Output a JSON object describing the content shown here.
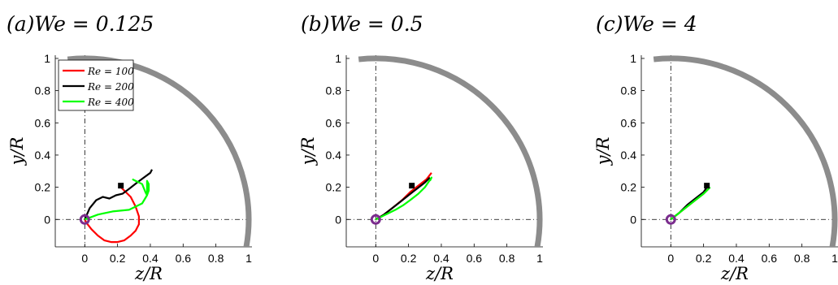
{
  "figure": {
    "x_ticks": [
      0,
      0.2,
      0.4,
      0.6,
      0.8,
      1
    ],
    "y_ticks": [
      0,
      0.2,
      0.4,
      0.6,
      0.8,
      1
    ],
    "x_tick_labels": [
      "0",
      "0.2",
      "0.4",
      "0.6",
      "0.8",
      "1"
    ],
    "y_tick_labels": [
      "0",
      "0.2",
      "0.4",
      "0.6",
      "0.8",
      "1"
    ],
    "xlabel": "z/R",
    "ylabel": "y/R",
    "wall_color": "#8c8c8c",
    "origin_marker_color": "#7b2d8e"
  },
  "chart_data": [
    {
      "type": "line",
      "panel": "a",
      "title": "(a)We = 0.125",
      "xlim": [
        -0.18,
        1.02
      ],
      "ylim": [
        -0.17,
        1.02
      ],
      "grid": false,
      "legend_position": "top-left",
      "start_point": [
        0.22,
        0.21
      ],
      "series": [
        {
          "name": "Re = 100",
          "color": "#ff0000",
          "x": [
            0.22,
            0.28,
            0.31,
            0.33,
            0.33,
            0.31,
            0.28,
            0.24,
            0.2,
            0.16,
            0.12,
            0.08,
            0.04,
            0.01,
            0
          ],
          "y": [
            0.2,
            0.14,
            0.08,
            0.02,
            -0.03,
            -0.07,
            -0.1,
            -0.13,
            -0.14,
            -0.14,
            -0.13,
            -0.1,
            -0.06,
            -0.02,
            0
          ]
        },
        {
          "name": "Re = 200",
          "color": "#000000",
          "x": [
            0,
            0.03,
            0.07,
            0.11,
            0.15,
            0.19,
            0.23,
            0.27,
            0.32,
            0.36,
            0.4,
            0.41
          ],
          "y": [
            0,
            0.07,
            0.12,
            0.14,
            0.13,
            0.15,
            0.16,
            0.19,
            0.23,
            0.26,
            0.29,
            0.31
          ]
        },
        {
          "name": "Re = 400",
          "color": "#00ff00",
          "x": [
            0,
            0.08,
            0.17,
            0.27,
            0.35,
            0.38,
            0.38,
            0.38,
            0.39,
            0.39,
            0.38,
            0.37,
            0.35,
            0.33,
            0.31,
            0.29
          ],
          "y": [
            0,
            0.03,
            0.05,
            0.06,
            0.1,
            0.15,
            0.2,
            0.24,
            0.22,
            0.18,
            0.15,
            0.17,
            0.22,
            0.23,
            0.24,
            0.25
          ]
        }
      ]
    },
    {
      "type": "line",
      "panel": "b",
      "title": "(b)We = 0.5",
      "xlim": [
        -0.18,
        1.02
      ],
      "ylim": [
        -0.17,
        1.02
      ],
      "grid": false,
      "start_point": [
        0.22,
        0.21
      ],
      "series": [
        {
          "name": "Re = 100",
          "color": "#ff0000",
          "x": [
            0,
            0.05,
            0.1,
            0.16,
            0.21,
            0.26,
            0.31,
            0.34
          ],
          "y": [
            0,
            0.03,
            0.07,
            0.12,
            0.17,
            0.21,
            0.25,
            0.29
          ]
        },
        {
          "name": "Re = 200",
          "color": "#000000",
          "x": [
            0,
            0.05,
            0.1,
            0.15,
            0.2,
            0.25,
            0.3,
            0.33
          ],
          "y": [
            0,
            0.03,
            0.07,
            0.11,
            0.15,
            0.19,
            0.23,
            0.26
          ]
        },
        {
          "name": "Re = 400",
          "color": "#00ff00",
          "x": [
            0,
            0.04,
            0.08,
            0.12,
            0.17,
            0.21,
            0.26,
            0.3,
            0.32,
            0.34,
            0.33
          ],
          "y": [
            0,
            0.02,
            0.04,
            0.06,
            0.09,
            0.12,
            0.16,
            0.2,
            0.23,
            0.26,
            0.24
          ]
        }
      ]
    },
    {
      "type": "line",
      "panel": "c",
      "title": "(c)We = 4",
      "xlim": [
        -0.18,
        1.02
      ],
      "ylim": [
        -0.17,
        1.02
      ],
      "grid": false,
      "start_point": [
        0.22,
        0.21
      ],
      "series": [
        {
          "name": "Re = 100",
          "color": "#ff0000",
          "x": [
            0,
            0.05,
            0.1,
            0.15,
            0.2,
            0.23
          ],
          "y": [
            0,
            0.04,
            0.08,
            0.12,
            0.16,
            0.19
          ]
        },
        {
          "name": "Re = 200",
          "color": "#000000",
          "x": [
            0,
            0.05,
            0.1,
            0.15,
            0.2,
            0.22
          ],
          "y": [
            0,
            0.04,
            0.09,
            0.13,
            0.17,
            0.2
          ]
        },
        {
          "name": "Re = 400",
          "color": "#00ff00",
          "x": [
            0,
            0.05,
            0.1,
            0.15,
            0.2,
            0.24
          ],
          "y": [
            0,
            0.04,
            0.08,
            0.12,
            0.16,
            0.2
          ]
        }
      ]
    }
  ]
}
